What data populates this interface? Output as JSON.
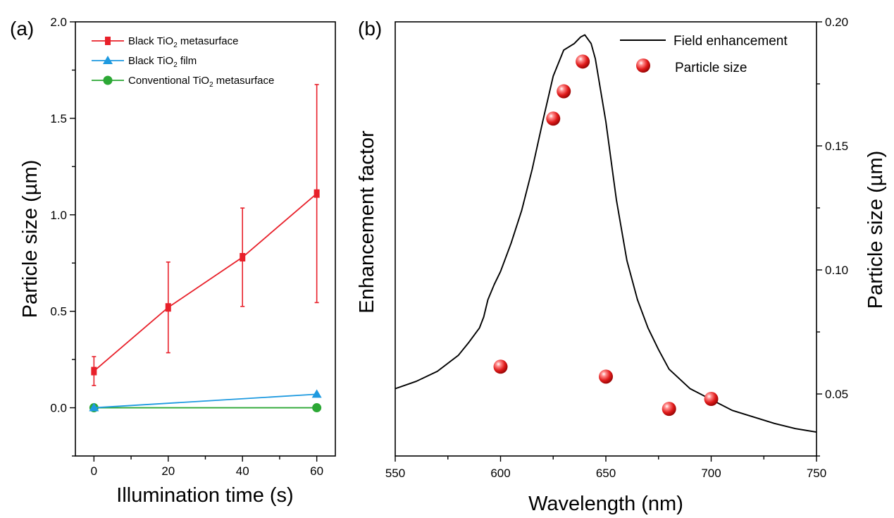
{
  "colors": {
    "red": "#e8202a",
    "blue": "#1e9ae0",
    "green": "#2ca835",
    "black": "#000000"
  },
  "chart_data": [
    {
      "type": "line",
      "panel_label": "(a)",
      "xlabel": "Illumination time (s)",
      "ylabel": "Particle size (µm)",
      "xlim": [
        -5,
        65
      ],
      "ylim": [
        -0.25,
        2.0
      ],
      "x_ticks": [
        0,
        20,
        40,
        60
      ],
      "x_tick_labels": [
        "0",
        "20",
        "40",
        "60"
      ],
      "y_ticks": [
        0,
        0.5,
        1.0,
        1.5,
        2.0
      ],
      "y_tick_labels": [
        "0.0",
        "0.5",
        "1.0",
        "1.5",
        "2.0"
      ],
      "legend_position": "top-left",
      "series": [
        {
          "name": "Black TiO₂ metasurface",
          "name_parts": [
            "Black TiO",
            "2",
            " metasurface"
          ],
          "color": "#e8202a",
          "marker": "square",
          "x": [
            0,
            20,
            40,
            60
          ],
          "y": [
            0.19,
            0.52,
            0.78,
            1.11
          ],
          "yerr": [
            0.075,
            0.235,
            0.255,
            0.565
          ]
        },
        {
          "name": "Black TiO₂ film",
          "name_parts": [
            "Black TiO",
            "2",
            " film"
          ],
          "color": "#1e9ae0",
          "marker": "triangle",
          "x": [
            0,
            60
          ],
          "y": [
            0.0,
            0.07
          ]
        },
        {
          "name": "Conventional TiO₂ metasurface",
          "name_parts": [
            "Conventional TiO",
            "2",
            " metasurface"
          ],
          "color": "#2ca835",
          "marker": "circle",
          "x": [
            0,
            60
          ],
          "y": [
            0.0,
            0.0
          ]
        }
      ]
    },
    {
      "type": "line",
      "panel_label": "(b)",
      "xlabel": "Wavelength (nm)",
      "ylabel_left": "Enhancement factor",
      "ylabel_right": "Particle size (µm)",
      "xlim": [
        550,
        750
      ],
      "x_ticks": [
        550,
        600,
        650,
        700,
        750
      ],
      "x_tick_labels": [
        "550",
        "600",
        "650",
        "700",
        "750"
      ],
      "y_right_lim": [
        0.025,
        0.2
      ],
      "y_right_ticks": [
        0.05,
        0.1,
        0.15,
        0.2
      ],
      "y_right_tick_labels": [
        "0.05",
        "0.10",
        "0.15",
        "0.20"
      ],
      "legend_position": "top-right",
      "series": [
        {
          "name": "Field enhancement",
          "color": "#000000",
          "axis": "left",
          "y_relative": true,
          "x": [
            550,
            560,
            570,
            580,
            585,
            590,
            592,
            594,
            597,
            600,
            605,
            610,
            615,
            620,
            625,
            630,
            635,
            638,
            640,
            643,
            645,
            650,
            655,
            660,
            665,
            670,
            675,
            680,
            690,
            700,
            710,
            720,
            730,
            740,
            750
          ],
          "y": [
            0.155,
            0.172,
            0.195,
            0.232,
            0.262,
            0.295,
            0.32,
            0.36,
            0.395,
            0.425,
            0.49,
            0.565,
            0.66,
            0.77,
            0.875,
            0.935,
            0.95,
            0.965,
            0.97,
            0.95,
            0.915,
            0.77,
            0.59,
            0.45,
            0.36,
            0.295,
            0.245,
            0.2,
            0.155,
            0.13,
            0.105,
            0.09,
            0.075,
            0.063,
            0.055
          ]
        },
        {
          "name": "Particle size",
          "color": "#e8202a",
          "axis": "right",
          "marker": "sphere",
          "x": [
            600,
            625,
            630,
            639,
            650,
            680,
            700
          ],
          "y": [
            0.061,
            0.161,
            0.172,
            0.184,
            0.057,
            0.044,
            0.048
          ]
        }
      ]
    }
  ]
}
